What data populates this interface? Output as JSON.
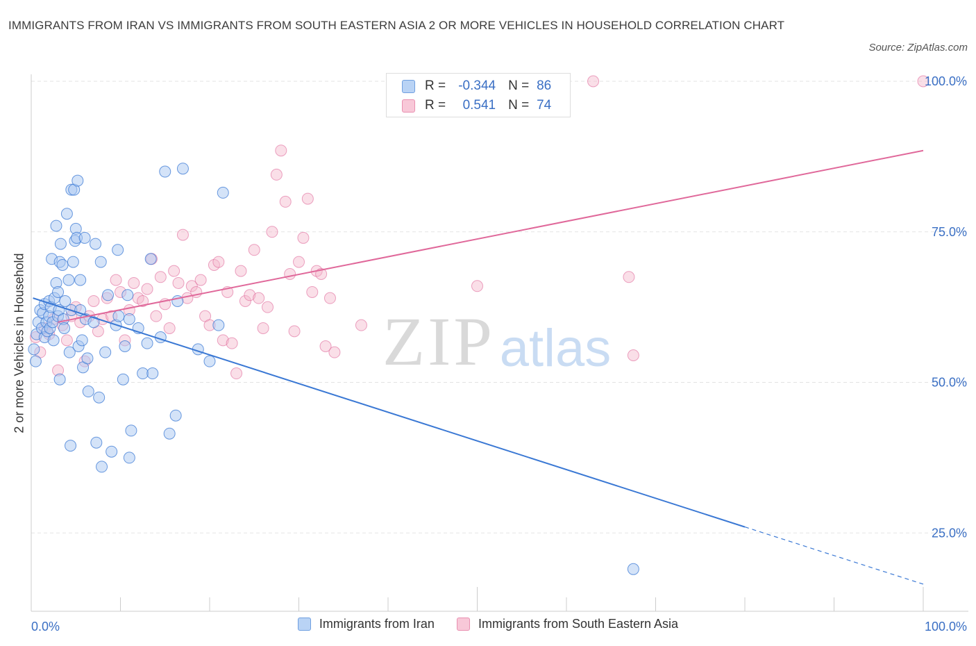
{
  "title": "IMMIGRANTS FROM IRAN VS IMMIGRANTS FROM SOUTH EASTERN ASIA 2 OR MORE VEHICLES IN HOUSEHOLD CORRELATION CHART",
  "source": "Source: ZipAtlas.com",
  "watermark": {
    "zip": "ZIP",
    "atlas": "atlas"
  },
  "colors": {
    "blue": "#3a78d4",
    "blue_fill": "#a9c8f2",
    "pink": "#e0689a",
    "pink_fill": "#f5b8cc",
    "axis_text": "#3a6fc4",
    "grid": "#e3e3e3"
  },
  "legend": {
    "rows": [
      {
        "r_label": "R =",
        "r_value": "-0.344",
        "n_label": "N =",
        "n_value": "86"
      },
      {
        "r_label": "R =",
        "r_value": "0.541",
        "n_label": "N =",
        "n_value": "74"
      }
    ]
  },
  "chart_data": {
    "type": "scatter",
    "title": "IMMIGRANTS FROM IRAN VS IMMIGRANTS FROM SOUTH EASTERN ASIA 2 OR MORE VEHICLES IN HOUSEHOLD CORRELATION CHART",
    "xlabel": "",
    "ylabel": "2 or more Vehicles in Household",
    "xlim": [
      0,
      100
    ],
    "ylim": [
      0,
      100
    ],
    "x_tick_labels": [
      "0.0%",
      "100.0%"
    ],
    "y_ticks": [
      25,
      50,
      75,
      100
    ],
    "y_tick_labels": [
      "25.0%",
      "50.0%",
      "75.0%",
      "100.0%"
    ],
    "grid": true,
    "legend_position": "bottom",
    "series": [
      {
        "name": "Immigrants from Iran",
        "color": "#3a78d4",
        "r": -0.344,
        "n": 86,
        "trend": {
          "x0": 0.2,
          "y0": 64.0,
          "x1": 80.0,
          "y1": 26.0,
          "dash_to_x": 100.0,
          "dash_to_y": 16.5
        },
        "points": [
          [
            0.3,
            55.5
          ],
          [
            0.5,
            53.5
          ],
          [
            0.6,
            58.0
          ],
          [
            0.8,
            60.0
          ],
          [
            1.0,
            62.0
          ],
          [
            1.2,
            59.0
          ],
          [
            1.3,
            61.5
          ],
          [
            1.5,
            63.0
          ],
          [
            1.5,
            57.5
          ],
          [
            1.7,
            60.0
          ],
          [
            1.8,
            58.5
          ],
          [
            2.0,
            61.0
          ],
          [
            2.0,
            63.5
          ],
          [
            2.1,
            59.0
          ],
          [
            2.2,
            62.5
          ],
          [
            2.3,
            70.5
          ],
          [
            2.4,
            60.0
          ],
          [
            2.5,
            57.0
          ],
          [
            2.6,
            64.0
          ],
          [
            2.8,
            76.0
          ],
          [
            2.8,
            66.5
          ],
          [
            3.0,
            65.0
          ],
          [
            3.0,
            61.0
          ],
          [
            3.1,
            62.0
          ],
          [
            3.2,
            50.5
          ],
          [
            3.2,
            70.0
          ],
          [
            3.3,
            73.0
          ],
          [
            3.5,
            69.5
          ],
          [
            3.6,
            60.5
          ],
          [
            3.7,
            59.0
          ],
          [
            3.8,
            63.5
          ],
          [
            4.0,
            78.0
          ],
          [
            4.2,
            67.0
          ],
          [
            4.3,
            55.0
          ],
          [
            4.4,
            39.5
          ],
          [
            4.5,
            82.0
          ],
          [
            4.5,
            62.0
          ],
          [
            4.7,
            70.0
          ],
          [
            4.8,
            82.0
          ],
          [
            4.9,
            73.5
          ],
          [
            5.0,
            75.5
          ],
          [
            5.1,
            74.0
          ],
          [
            5.2,
            83.5
          ],
          [
            5.3,
            56.0
          ],
          [
            5.5,
            67.0
          ],
          [
            5.5,
            62.0
          ],
          [
            5.7,
            57.0
          ],
          [
            5.8,
            52.5
          ],
          [
            6.0,
            74.0
          ],
          [
            6.1,
            60.5
          ],
          [
            6.3,
            54.0
          ],
          [
            6.4,
            48.5
          ],
          [
            7.0,
            60.0
          ],
          [
            7.2,
            73.0
          ],
          [
            7.3,
            40.0
          ],
          [
            7.6,
            47.5
          ],
          [
            7.8,
            70.0
          ],
          [
            7.9,
            36.0
          ],
          [
            8.3,
            55.0
          ],
          [
            8.6,
            64.5
          ],
          [
            9.0,
            38.5
          ],
          [
            9.5,
            59.5
          ],
          [
            9.7,
            72.0
          ],
          [
            9.8,
            61.0
          ],
          [
            10.3,
            50.5
          ],
          [
            10.5,
            56.0
          ],
          [
            10.8,
            64.5
          ],
          [
            11.0,
            37.5
          ],
          [
            11.2,
            42.0
          ],
          [
            12.0,
            59.0
          ],
          [
            12.5,
            51.5
          ],
          [
            13.0,
            56.5
          ],
          [
            13.4,
            70.5
          ],
          [
            13.6,
            51.5
          ],
          [
            14.5,
            57.5
          ],
          [
            15.0,
            85.0
          ],
          [
            15.5,
            41.5
          ],
          [
            16.2,
            44.5
          ],
          [
            16.4,
            63.5
          ],
          [
            17.0,
            85.5
          ],
          [
            18.7,
            55.5
          ],
          [
            20.0,
            53.5
          ],
          [
            21.0,
            59.5
          ],
          [
            21.5,
            81.5
          ],
          [
            67.5,
            19.0
          ],
          [
            11.0,
            60.5
          ]
        ]
      },
      {
        "name": "Immigrants from South Eastern Asia",
        "color": "#e0689a",
        "r": 0.541,
        "n": 74,
        "trend": {
          "x0": 3.0,
          "y0": 60.0,
          "x1": 100.0,
          "y1": 88.5
        },
        "points": [
          [
            0.5,
            57.5
          ],
          [
            1.0,
            55.0
          ],
          [
            1.5,
            59.0
          ],
          [
            2.0,
            58.0
          ],
          [
            2.5,
            60.5
          ],
          [
            3.0,
            52.0
          ],
          [
            3.5,
            59.5
          ],
          [
            4.0,
            57.0
          ],
          [
            4.5,
            61.0
          ],
          [
            5.0,
            62.5
          ],
          [
            5.5,
            60.0
          ],
          [
            6.0,
            53.5
          ],
          [
            6.5,
            61.0
          ],
          [
            7.0,
            63.5
          ],
          [
            7.5,
            58.5
          ],
          [
            8.0,
            60.5
          ],
          [
            8.5,
            64.0
          ],
          [
            9.0,
            61.0
          ],
          [
            9.5,
            67.0
          ],
          [
            10.0,
            65.0
          ],
          [
            10.5,
            57.0
          ],
          [
            11.0,
            62.0
          ],
          [
            11.5,
            66.5
          ],
          [
            12.0,
            64.0
          ],
          [
            12.5,
            63.5
          ],
          [
            13.0,
            65.5
          ],
          [
            13.5,
            70.5
          ],
          [
            14.0,
            61.0
          ],
          [
            14.5,
            67.5
          ],
          [
            15.0,
            63.0
          ],
          [
            15.5,
            59.0
          ],
          [
            16.0,
            68.5
          ],
          [
            16.5,
            66.5
          ],
          [
            17.0,
            74.5
          ],
          [
            17.5,
            64.0
          ],
          [
            18.0,
            66.0
          ],
          [
            18.5,
            65.0
          ],
          [
            19.0,
            67.0
          ],
          [
            19.5,
            61.0
          ],
          [
            20.0,
            59.5
          ],
          [
            20.5,
            69.5
          ],
          [
            21.0,
            70.0
          ],
          [
            21.5,
            57.0
          ],
          [
            22.0,
            65.0
          ],
          [
            22.5,
            56.5
          ],
          [
            23.0,
            51.5
          ],
          [
            23.5,
            68.5
          ],
          [
            24.0,
            63.5
          ],
          [
            24.5,
            64.5
          ],
          [
            25.0,
            72.0
          ],
          [
            25.5,
            64.0
          ],
          [
            26.0,
            59.0
          ],
          [
            26.5,
            62.5
          ],
          [
            27.0,
            75.0
          ],
          [
            27.5,
            84.5
          ],
          [
            28.0,
            88.5
          ],
          [
            28.5,
            80.0
          ],
          [
            29.0,
            68.0
          ],
          [
            29.5,
            58.5
          ],
          [
            30.0,
            70.0
          ],
          [
            30.5,
            74.0
          ],
          [
            31.0,
            80.5
          ],
          [
            31.5,
            65.0
          ],
          [
            32.0,
            68.5
          ],
          [
            32.5,
            68.0
          ],
          [
            33.0,
            56.0
          ],
          [
            33.5,
            64.0
          ],
          [
            34.0,
            55.0
          ],
          [
            37.0,
            59.5
          ],
          [
            50.0,
            66.0
          ],
          [
            63.0,
            100.0
          ],
          [
            67.0,
            67.5
          ],
          [
            67.5,
            54.5
          ],
          [
            100.0,
            100.0
          ]
        ]
      }
    ]
  }
}
